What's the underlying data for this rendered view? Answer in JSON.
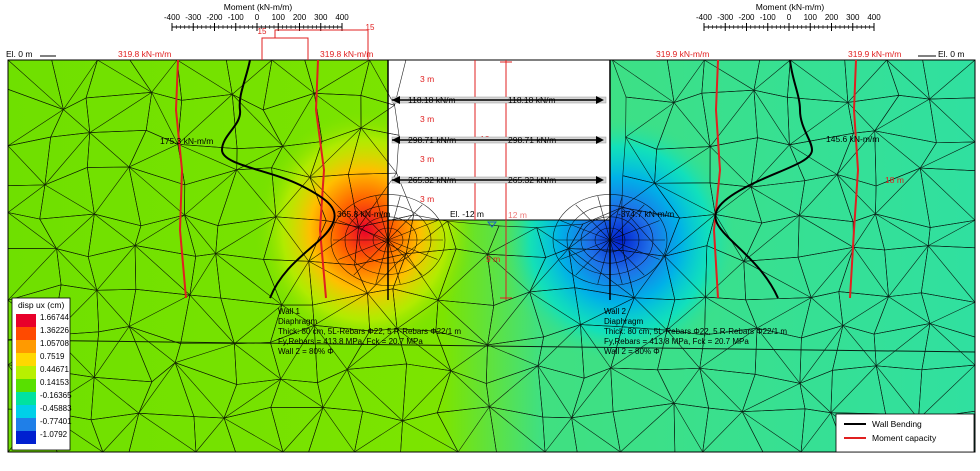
{
  "moment_axis": {
    "title": "Moment (kN-m/m)",
    "ticks": [
      "-400",
      "-300",
      "-200",
      "-100",
      "0",
      "100",
      "200",
      "300",
      "400"
    ]
  },
  "elevation_label": "El. 0 m",
  "excavation_bottom_label": "El. -12 m",
  "moment_capacity_value": "319.8 kN-m/m",
  "moment_capacity_value_right": "319.9 kN-m/m",
  "moment_capacity_ticks": [
    "15",
    "15"
  ],
  "left_wall": {
    "moment_label_upper": "175.3 kN-m/m",
    "moment_label_lower": "365.8 kN-m/m",
    "info_lines": [
      "Wall 1",
      "Diaphragm",
      "Thick: 80 cm, 5L-Rebars Φ22, 5 R-Rebars Φ22/1 m",
      "Fy,Rebars = 413.8 MPa, Fck = 20.7 MPa",
      "Wall 2 = 80% Φ"
    ]
  },
  "right_wall": {
    "moment_label_upper": "145.6 kN-m/m",
    "moment_label_lower": "-374.7 kN-m/m",
    "side_label": "18 m",
    "info_lines": [
      "Wall 2",
      "Diaphragm",
      "Thick: 80 cm, 5L-Rebars Φ22, 5 R-Rebars Φ22/1 m",
      "Fy,Rebars = 413.8 MPa, Fck = 20.7 MPa",
      "Wall 2 = 80% Φ"
    ]
  },
  "spacing_labels": [
    "3 m",
    "3 m",
    "3 m",
    "3 m",
    "3 m"
  ],
  "struts": [
    {
      "left": "118.18 kN/m",
      "right": "118.18 kN/m"
    },
    {
      "left": "298.71 kN/m",
      "right": "298.71 kN/m"
    },
    {
      "left": "265.32 kN/m",
      "right": "265.32 kN/m"
    }
  ],
  "depth_label_top": "12 m",
  "depth_label_mid": "12 m",
  "depth_label_bottom": "9 m",
  "colors": {
    "wall_bending": "#000000",
    "moment_capacity": "#e02020"
  },
  "contour_legend": {
    "title": "disp ux (cm)",
    "values": [
      "1.66744",
      "1.36226",
      "1.05708",
      "0.7519",
      "0.44671",
      "0.14153",
      "-0.16365",
      "-0.45883",
      "-0.77401",
      "-1.0792"
    ],
    "colors": [
      "#e8002a",
      "#ff4a00",
      "#ff9a00",
      "#ffd800",
      "#b8f000",
      "#58e000",
      "#00e2a0",
      "#00d0e8",
      "#1f7fe8",
      "#0020d0"
    ]
  },
  "legend": {
    "items": [
      {
        "label": "Wall Bending",
        "color": "#000000"
      },
      {
        "label": "Moment capacity",
        "color": "#e02020"
      }
    ]
  }
}
